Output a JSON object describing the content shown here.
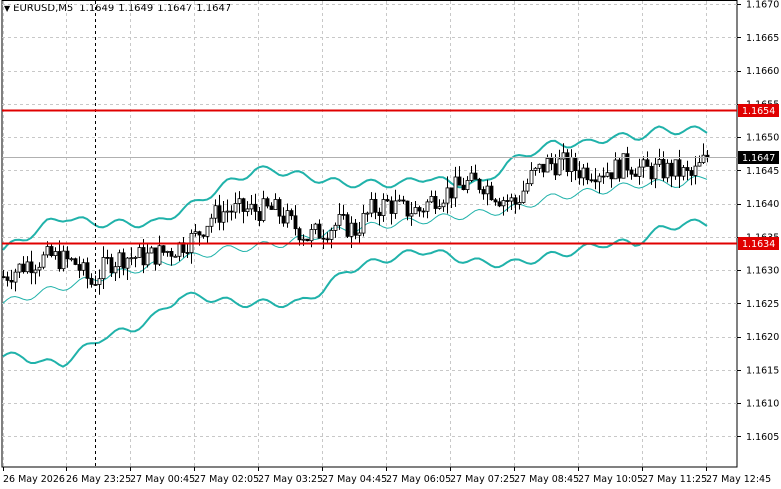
{
  "header": {
    "symbol": "EURUSD,M5",
    "open": "1.1649",
    "high": "1.1649",
    "low": "1.1647",
    "close": "1.1647"
  },
  "colors": {
    "background": "#ffffff",
    "grid": "#c8c8c8",
    "candle": "#000000",
    "bollinger": "#20b2aa",
    "level_line": "#e00000",
    "label_text_dark": "#000000",
    "label_text_light": "#ffffff"
  },
  "chart_data": {
    "type": "candlestick",
    "symbol": "EURUSD",
    "timeframe": "M5",
    "ylim": [
      1.16,
      1.167
    ],
    "y_ticks": [
      "1.1670",
      "1.1665",
      "1.1660",
      "1.1655",
      "1.1650",
      "1.1645",
      "1.1640",
      "1.1635",
      "1.1630",
      "1.1625",
      "1.1620",
      "1.1615",
      "1.1610",
      "1.1605"
    ],
    "x_ticks": [
      "26 May 2026",
      "26 May 23:25",
      "27 May 00:45",
      "27 May 02:05",
      "27 May 03:25",
      "27 May 04:45",
      "27 May 06:05",
      "27 May 07:25",
      "27 May 08:45",
      "27 May 10:05",
      "27 May 11:25",
      "27 May 12:45"
    ],
    "grid": true,
    "levels": [
      {
        "price": 1.1654,
        "label": "1.1654"
      },
      {
        "price": 1.1634,
        "label": "1.1634"
      }
    ],
    "current_price": {
      "price": 1.1647,
      "label": "1.1647"
    },
    "cursor_vline_time": "26 May 23:25",
    "bollinger": {
      "upper": [
        [
          0,
          1.1633
        ],
        [
          6,
          1.1635
        ],
        [
          11,
          1.1637
        ],
        [
          16,
          1.1638
        ],
        [
          22,
          1.1637
        ],
        [
          30,
          1.1637
        ],
        [
          38,
          1.1637
        ],
        [
          48,
          1.164
        ],
        [
          56,
          1.1643
        ],
        [
          63,
          1.1645
        ],
        [
          68,
          1.1645
        ],
        [
          76,
          1.1644
        ],
        [
          85,
          1.1643
        ],
        [
          92,
          1.1643
        ],
        [
          100,
          1.1643
        ],
        [
          106,
          1.1644
        ],
        [
          112,
          1.1643
        ],
        [
          120,
          1.1643
        ],
        [
          126,
          1.1646
        ],
        [
          133,
          1.1648
        ],
        [
          138,
          1.1649
        ],
        [
          146,
          1.1649
        ],
        [
          152,
          1.165
        ],
        [
          158,
          1.165
        ],
        [
          164,
          1.1651
        ],
        [
          170,
          1.1651
        ],
        [
          176,
          1.1651
        ]
      ],
      "middle": [
        [
          0,
          1.1625
        ],
        [
          12,
          1.1627
        ],
        [
          25,
          1.1629
        ],
        [
          40,
          1.1631
        ],
        [
          55,
          1.1633
        ],
        [
          70,
          1.1634
        ],
        [
          84,
          1.1636
        ],
        [
          98,
          1.1637
        ],
        [
          112,
          1.1638
        ],
        [
          126,
          1.1639
        ],
        [
          138,
          1.1641
        ],
        [
          150,
          1.1642
        ],
        [
          160,
          1.1643
        ],
        [
          170,
          1.1643
        ],
        [
          176,
          1.1644
        ]
      ],
      "lower": [
        [
          0,
          1.1617
        ],
        [
          5,
          1.1617
        ],
        [
          10,
          1.1616
        ],
        [
          15,
          1.1616
        ],
        [
          20,
          1.1618
        ],
        [
          25,
          1.162
        ],
        [
          32,
          1.1621
        ],
        [
          38,
          1.1623
        ],
        [
          44,
          1.1626
        ],
        [
          50,
          1.1626
        ],
        [
          58,
          1.1625
        ],
        [
          66,
          1.1625
        ],
        [
          74,
          1.1625
        ],
        [
          80,
          1.1627
        ],
        [
          86,
          1.163
        ],
        [
          92,
          1.1631
        ],
        [
          98,
          1.1632
        ],
        [
          106,
          1.1633
        ],
        [
          112,
          1.1632
        ],
        [
          120,
          1.1631
        ],
        [
          128,
          1.1631
        ],
        [
          136,
          1.1632
        ],
        [
          144,
          1.1633
        ],
        [
          150,
          1.1634
        ],
        [
          158,
          1.1634
        ],
        [
          164,
          1.1636
        ],
        [
          170,
          1.1637
        ],
        [
          176,
          1.1637
        ]
      ]
    },
    "price_path": [
      [
        0,
        1.1629
      ],
      [
        6,
        1.1631
      ],
      [
        12,
        1.1632
      ],
      [
        18,
        1.1631
      ],
      [
        22,
        1.1628
      ],
      [
        26,
        1.1631
      ],
      [
        30,
        1.1632
      ],
      [
        36,
        1.1632
      ],
      [
        42,
        1.1633
      ],
      [
        48,
        1.1635
      ],
      [
        52,
        1.1638
      ],
      [
        56,
        1.1639
      ],
      [
        60,
        1.1639
      ],
      [
        64,
        1.1639
      ],
      [
        68,
        1.1639
      ],
      [
        72,
        1.1637
      ],
      [
        76,
        1.1635
      ],
      [
        80,
        1.1636
      ],
      [
        84,
        1.1637
      ],
      [
        88,
        1.1636
      ],
      [
        92,
        1.1639
      ],
      [
        96,
        1.164
      ],
      [
        100,
        1.1639
      ],
      [
        104,
        1.1639
      ],
      [
        108,
        1.1641
      ],
      [
        112,
        1.1642
      ],
      [
        116,
        1.1643
      ],
      [
        120,
        1.1643
      ],
      [
        124,
        1.1641
      ],
      [
        128,
        1.164
      ],
      [
        132,
        1.1644
      ],
      [
        136,
        1.1646
      ],
      [
        140,
        1.1646
      ],
      [
        144,
        1.1645
      ],
      [
        148,
        1.1645
      ],
      [
        152,
        1.1645
      ],
      [
        156,
        1.1646
      ],
      [
        160,
        1.1645
      ],
      [
        164,
        1.1645
      ],
      [
        168,
        1.1645
      ],
      [
        172,
        1.1644
      ],
      [
        176,
        1.1647
      ]
    ],
    "price_path_note": ""
  }
}
